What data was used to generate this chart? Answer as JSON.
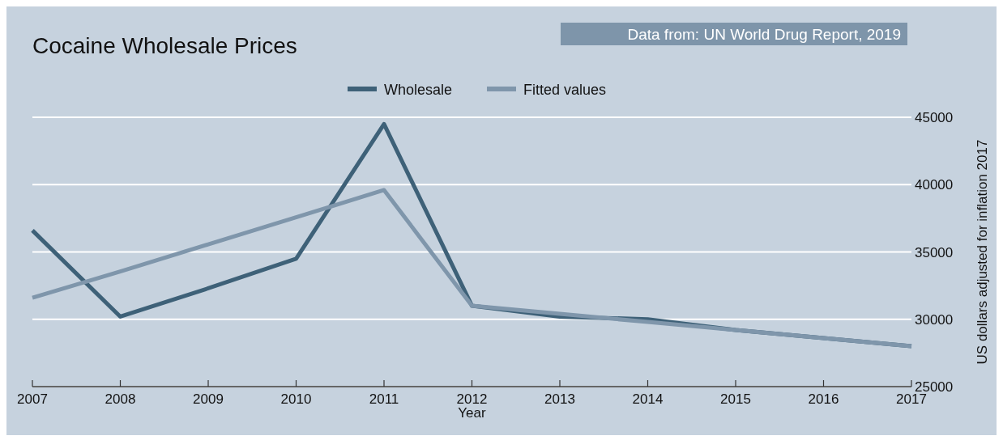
{
  "chart_data": {
    "type": "line",
    "title": "Cocaine Wholesale Prices",
    "xlabel": "Year",
    "y2label": "US dollars adjusted for inflation 2017",
    "annotations": [
      "Data from: UN World Drug Report, 2019"
    ],
    "x": [
      2007,
      2008,
      2009,
      2010,
      2011,
      2012,
      2013,
      2014,
      2015,
      2016,
      2017
    ],
    "xlim": [
      2007,
      2017
    ],
    "xticks": [
      2007,
      2008,
      2009,
      2010,
      2011,
      2012,
      2013,
      2014,
      2015,
      2016,
      2017
    ],
    "y2lim": [
      25000,
      45000
    ],
    "y2ticks": [
      25000,
      30000,
      35000,
      40000,
      45000
    ],
    "grid": "y",
    "legend": "top",
    "line_style": "solid",
    "marker": "none",
    "series": [
      {
        "name": "Wholesale",
        "color": "#3e6178",
        "axis": "y2",
        "values": [
          36600,
          30200,
          32300,
          34500,
          44500,
          31000,
          30200,
          30000,
          29200,
          28600,
          28000
        ]
      },
      {
        "name": "Fitted values",
        "color": "#7f96ab",
        "axis": "y2",
        "values": [
          31600,
          33550,
          35560,
          37570,
          39600,
          31000,
          30400,
          29800,
          29200,
          28600,
          28000
        ]
      }
    ]
  }
}
